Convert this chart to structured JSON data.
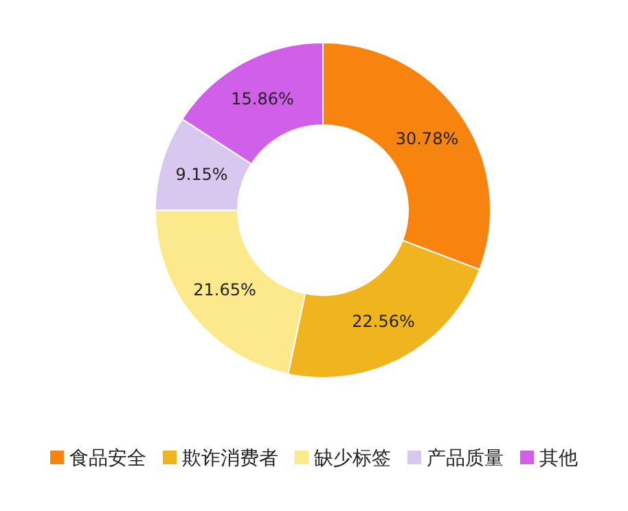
{
  "chart_data": {
    "type": "donut",
    "categories": [
      "食品安全",
      "欺诈消费者",
      "缺少标签",
      "产品质量",
      "其他"
    ],
    "values": [
      30.78,
      22.56,
      21.65,
      9.15,
      15.86
    ],
    "colors": [
      "#f88410",
      "#f0b41e",
      "#fbe98c",
      "#d8c8f0",
      "#d060e8"
    ],
    "value_labels": [
      "30.78%",
      "22.56%",
      "21.65%",
      "9.15%",
      "15.86%"
    ],
    "legend": "bottom"
  }
}
